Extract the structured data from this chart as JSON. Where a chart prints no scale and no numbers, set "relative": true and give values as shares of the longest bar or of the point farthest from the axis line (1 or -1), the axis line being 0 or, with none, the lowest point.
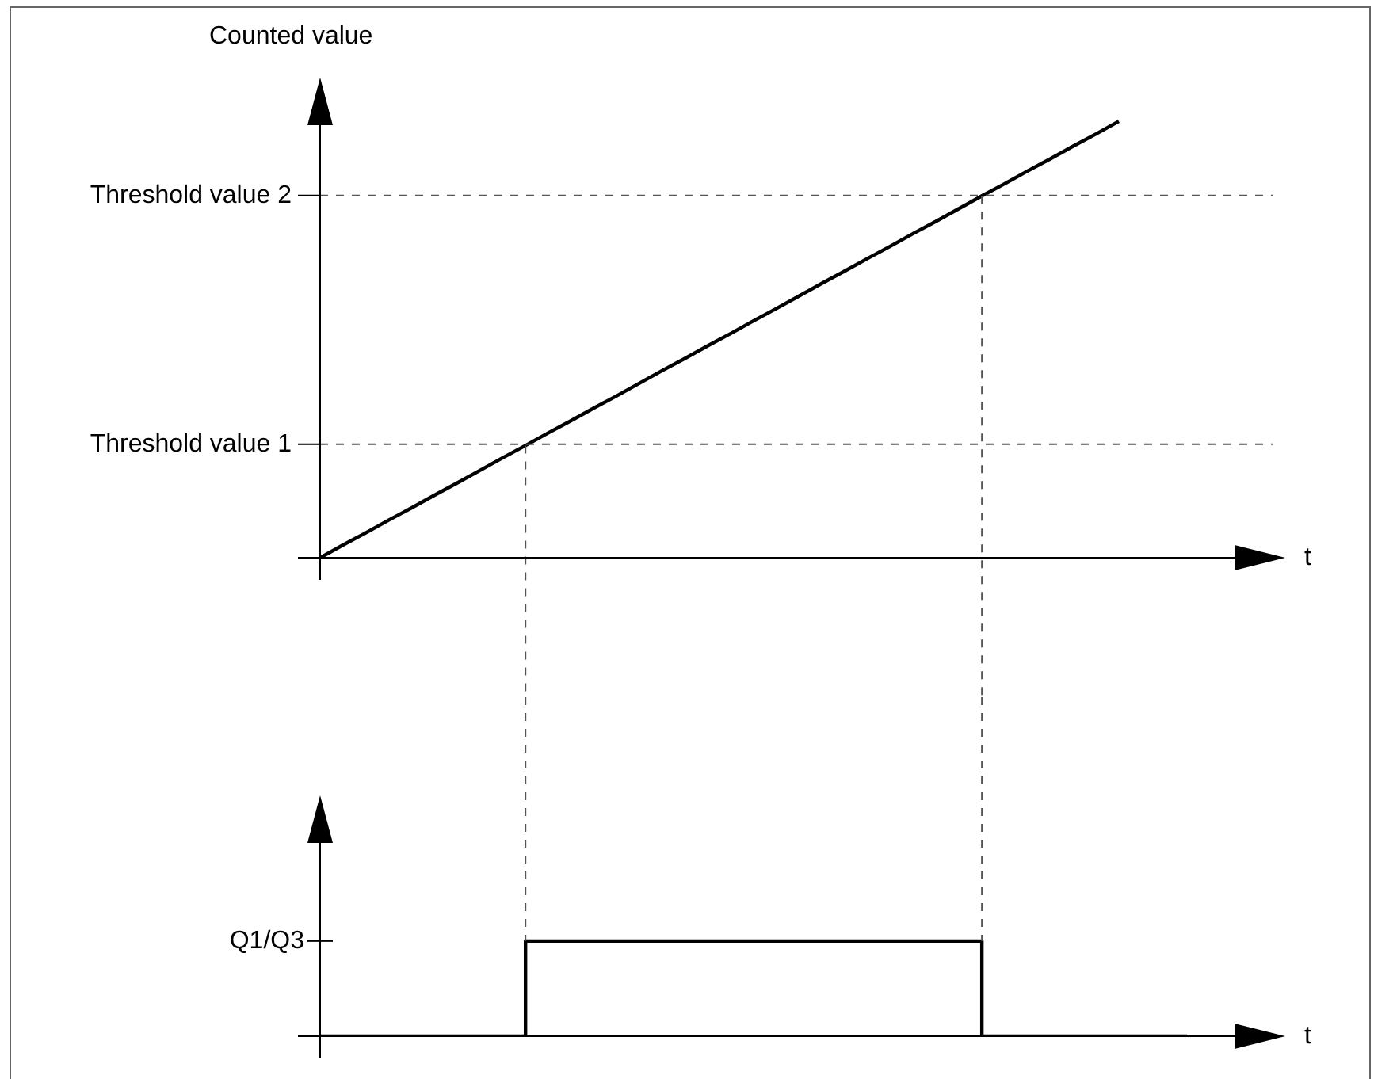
{
  "chart_data": [
    {
      "type": "line",
      "ylabel": "Counted value",
      "xlabel": "t",
      "relative": true,
      "color": "#000000",
      "marker": "none",
      "categories": [
        null,
        null,
        null,
        null,
        null,
        null,
        null,
        null,
        null,
        null,
        null,
        null,
        null,
        null,
        null,
        null,
        null,
        null,
        null,
        null,
        null,
        null,
        null,
        null,
        null,
        null,
        null,
        null,
        null,
        null,
        null,
        null,
        null,
        null,
        null,
        null,
        null,
        null,
        null
      ],
      "values": [
        0,
        0.029,
        0.057,
        0.086,
        0.114,
        0.143,
        0.171,
        0.2,
        0.229,
        0.257,
        0.286,
        0.314,
        0.343,
        0.371,
        0.4,
        0.429,
        0.457,
        0.486,
        0.514,
        0.543,
        0.571,
        0.6,
        0.629,
        0.657,
        0.686,
        0.714,
        0.743,
        0.771,
        0.8,
        0.829,
        0.857,
        0.886,
        0.914,
        0.943,
        0.971,
        1,
        null,
        null,
        null
      ],
      "ref_lines": [
        {
          "axis": "y",
          "value": 0.26,
          "label": "Threshold value 1",
          "line_style": "dashed"
        },
        {
          "axis": "y",
          "value": 0.83,
          "label": "Threshold value 2",
          "line_style": "dashed"
        }
      ]
    },
    {
      "type": "step",
      "xlabel": "t",
      "relative": true,
      "color": "#000000",
      "marker": "none",
      "categories": [
        null,
        null,
        null,
        null,
        null,
        null,
        null,
        null,
        null,
        null,
        null,
        null,
        null,
        null,
        null,
        null,
        null,
        null,
        null,
        null,
        null,
        null,
        null,
        null,
        null,
        null,
        null,
        null,
        null,
        null,
        null,
        null,
        null,
        null,
        null,
        null,
        null,
        null,
        null
      ],
      "values": [
        0,
        0,
        0,
        0,
        0,
        0,
        0,
        0,
        0,
        1,
        1,
        1,
        1,
        1,
        1,
        1,
        1,
        1,
        1,
        1,
        1,
        1,
        1,
        1,
        1,
        1,
        1,
        1,
        1,
        0,
        0,
        0,
        0,
        0,
        0,
        0,
        0,
        0,
        0
      ],
      "annotations": [
        "Q1/Q3"
      ]
    }
  ]
}
